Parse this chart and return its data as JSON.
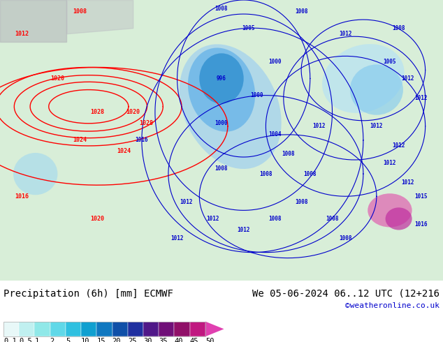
{
  "title_left": "Precipitation (6h) [mm] ECMWF",
  "title_right": "We 05-06-2024 06..12 UTC (12+216",
  "credit": "©weatheronline.co.uk",
  "colorbar_labels": [
    "0.1",
    "0.5",
    "1",
    "2",
    "5",
    "10",
    "15",
    "20",
    "25",
    "30",
    "35",
    "40",
    "45",
    "50"
  ],
  "colorbar_colors": [
    "#e0f8f8",
    "#b0eef0",
    "#80e0e8",
    "#50cce0",
    "#20b0d8",
    "#1090c8",
    "#1070b8",
    "#1050a0",
    "#203090",
    "#401880",
    "#601070",
    "#901060",
    "#c01880",
    "#e030a0",
    "#f060c0"
  ],
  "bg_color": "#ffffff",
  "map_bg": "#e8f4e8",
  "label_fontsize": 9,
  "title_fontsize": 10,
  "credit_fontsize": 8,
  "credit_color": "#0000cc",
  "figure_width": 6.34,
  "figure_height": 4.9,
  "dpi": 100
}
